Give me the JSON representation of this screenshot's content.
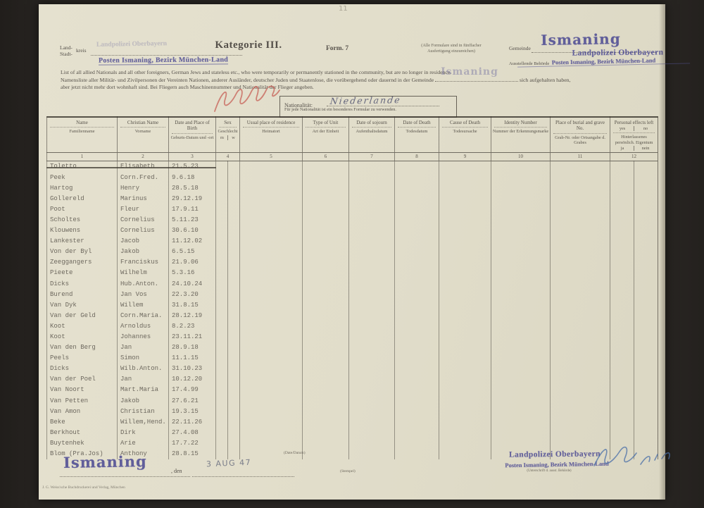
{
  "page_colors": {
    "paper": "#e1ddca",
    "ink": "#55504a",
    "typewriter": "#6e695f",
    "stamp_purple": "#5654a0",
    "red_pencil": "#c4574f",
    "blue_ink": "#4a6fa8"
  },
  "corner_mark": "11",
  "header": {
    "land_label": "Land-",
    "stadt_label": "Stadt-",
    "kreis_label": "kreis",
    "ghost_stamp": "Landpolizei Oberbayern",
    "left_stamp": "Posten Ismaning, Bezirk München-Land",
    "category_title": "Kategorie III.",
    "form_label": "Form. 7",
    "copies_note_line1": "(Alle Formulare sind in fünffacher",
    "copies_note_line2": "Ausfertigung einzureichen)",
    "gemeinde_label": "Gemeinde",
    "gemeinde_stamp": "Ismaning",
    "behoerde_label": "Ausstellende Behörde",
    "behoerde_stamp_line1": "Landpolizei Oberbayern",
    "behoerde_stamp_line2": "Posten Ismaning, Bezirk München-Land"
  },
  "intro": {
    "en": "List of all allied Nationals and all other foreigners, German Jews and stateless etc., who were temporarily or permanently stationed in the community, but are no longer in residence.",
    "de_part1": "Namensliste aller Militär- und Zivilpersonen der Vereinten Nationen, anderer Ausländer, deutscher Juden und Staatenlose, die vorübergehend oder dauernd in der Gemeinde",
    "de_stamp": "Ismaning",
    "de_part2": "sich aufgehalten haben,",
    "de_line3": "aber jetzt nicht mehr dort wohnhaft sind. Bei Fliegern auch Maschinennummer und Nationalität der Flieger angeben."
  },
  "nationality": {
    "label": "Nationalität:",
    "value": "Niederlande",
    "note": "Für jede Nationalität ist ein besonderes Formular zu verwenden."
  },
  "table": {
    "columns": [
      {
        "num": "1",
        "en": "Name",
        "de": "Familienname"
      },
      {
        "num": "2",
        "en": "Christian Name",
        "de": "Vorname"
      },
      {
        "num": "3",
        "en": "Date and Place of Birth",
        "de": "Geburts-Datum und -ort"
      },
      {
        "num": "4",
        "en": "Sex",
        "de": "Geschlecht",
        "sub_a": "m",
        "sub_b": "w"
      },
      {
        "num": "5",
        "en": "Usual place of residence",
        "de": "Heimatort"
      },
      {
        "num": "6",
        "en": "Type of Unit",
        "de": "Art der Einheit"
      },
      {
        "num": "7",
        "en": "Date of sojourn",
        "de": "Aufenthaltsdatum"
      },
      {
        "num": "8",
        "en": "Date of Death",
        "de": "Todesdatum"
      },
      {
        "num": "9",
        "en": "Cause of Death",
        "de": "Todesursache"
      },
      {
        "num": "10",
        "en": "Identity Number",
        "de": "Nummer der Erkennungsmarke"
      },
      {
        "num": "11",
        "en": "Place of burial and grave No.",
        "de": "Grab-Nr. oder Ortsangabe d. Grabes"
      },
      {
        "num": "12",
        "en": "Personal effects left",
        "en_sub_a": "yes",
        "en_sub_b": "no",
        "de": "Hinterlassenes persönlich. Eigentum",
        "sub_a": "ja",
        "sub_b": "nein"
      }
    ],
    "rows": [
      {
        "name": "Toletto",
        "first": "Elisabeth",
        "birth": "21.5.23",
        "struck": true
      },
      {
        "name": "Peek",
        "first": "Corn.Fred.",
        "birth": "9.6.18"
      },
      {
        "name": "Hartog",
        "first": "Henry",
        "birth": "28.5.18"
      },
      {
        "name": "Gollereld",
        "first": "Marinus",
        "birth": "29.12.19"
      },
      {
        "name": "Poot",
        "first": "Fleur",
        "birth": "17.9.11"
      },
      {
        "name": "Scholtes",
        "first": "Cornelius",
        "birth": "5.11.23"
      },
      {
        "name": "Klouwens",
        "first": "Cornelius",
        "birth": "30.6.10"
      },
      {
        "name": "Lankester",
        "first": "Jacob",
        "birth": "11.12.02"
      },
      {
        "name": "Von der Byl",
        "first": "Jakob",
        "birth": "6.5.15"
      },
      {
        "name": "Zeeggangers",
        "first": "Franciskus",
        "birth": "21.9.06"
      },
      {
        "name": "Pieete",
        "first": "Wilhelm",
        "birth": "5.3.16"
      },
      {
        "name": "Dicks",
        "first": "Hub.Anton.",
        "birth": "24.10.24"
      },
      {
        "name": "Burend",
        "first": "Jan Vos",
        "birth": "22.3.20"
      },
      {
        "name": "Van Dyk",
        "first": "Willem",
        "birth": "31.8.15"
      },
      {
        "name": "Van der Geld",
        "first": "Corn.Maria.",
        "birth": "28.12.19"
      },
      {
        "name": "Koot",
        "first": "Arnoldus",
        "birth": "8.2.23"
      },
      {
        "name": "Koot",
        "first": "Johannes",
        "birth": "23.11.21"
      },
      {
        "name": "Van den Berg",
        "first": "Jan",
        "birth": "28.9.18"
      },
      {
        "name": "Peels",
        "first": "Simon",
        "birth": "11.1.15"
      },
      {
        "name": "Dicks",
        "first": "Wilb.Anton.",
        "birth": "31.10.23"
      },
      {
        "name": "Van der Poel",
        "first": "Jan",
        "birth": "10.12.20"
      },
      {
        "name": "Van Noort",
        "first": "Mart.Maria",
        "birth": "17.4.99"
      },
      {
        "name": "Van Petten",
        "first": "Jakob",
        "birth": "27.6.21"
      },
      {
        "name": "Van Amon",
        "first": "Christian",
        "birth": "19.3.15"
      },
      {
        "name": "Beke",
        "first": "Willem,Hend.",
        "birth": "22.11.26"
      },
      {
        "name": "Berkhout",
        "first": "Dirk",
        "birth": "27.4.08"
      },
      {
        "name": "Buytenhek",
        "first": "Arie",
        "birth": "17.7.22"
      },
      {
        "name": "Blom (Pra.Jos)",
        "first": "Anthony",
        "birth": "28.8.15"
      }
    ]
  },
  "footer": {
    "date_caption": "(Date/Datum)",
    "place_stamp": "Ismaning",
    "den_label": ", den",
    "date_stamp": "3 AUG 47",
    "stempel_label": "(Stempel)",
    "signature_stamp_line1": "Landpolizei Oberbayern",
    "signature_stamp_line2": "Posten Ismaning, Bezirk München-Land",
    "signature_caption": "(Unterschrift d. ausst. Behörde)",
    "printer_note": "J. G. Weiss'sche Buchdruckerei und Verlag, München"
  }
}
